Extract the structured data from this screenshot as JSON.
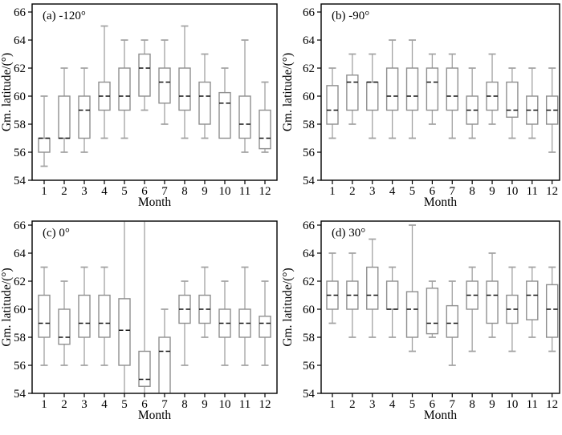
{
  "figure": {
    "background": "#ffffff",
    "xlabel": "Month",
    "ylabel": "Gm. latitude/(°)"
  },
  "colors": {
    "box_stroke": "#8f8f8f",
    "whisker_stroke": "#a2a2a2",
    "median": "#141414",
    "axis": "#000000",
    "box_fill": "#ffffff"
  },
  "chart_data": [
    {
      "type": "boxplot",
      "panel_label": "(a) -120°",
      "xlabel": "Month",
      "ylabel": "Gm. latitude/(°)",
      "ylim": [
        54,
        66.6
      ],
      "yticks": [
        54,
        56,
        58,
        60,
        62,
        64,
        66
      ],
      "categories": [
        "1",
        "2",
        "3",
        "4",
        "5",
        "6",
        "7",
        "8",
        "9",
        "10",
        "11",
        "12"
      ],
      "boxes": [
        {
          "lo": 55,
          "q1": 56,
          "med": 57,
          "q3": 57,
          "hi": 60
        },
        {
          "lo": 56,
          "q1": 57,
          "med": 57,
          "q3": 60,
          "hi": 62
        },
        {
          "lo": 56,
          "q1": 57,
          "med": 59,
          "q3": 60,
          "hi": 62
        },
        {
          "lo": 57,
          "q1": 59,
          "med": 60,
          "q3": 61,
          "hi": 65
        },
        {
          "lo": 57,
          "q1": 59,
          "med": 60,
          "q3": 62,
          "hi": 64
        },
        {
          "lo": 59,
          "q1": 60,
          "med": 62,
          "q3": 63,
          "hi": 64
        },
        {
          "lo": 58,
          "q1": 59.5,
          "med": 61,
          "q3": 62,
          "hi": 64
        },
        {
          "lo": 57,
          "q1": 59,
          "med": 60,
          "q3": 62,
          "hi": 65
        },
        {
          "lo": 57,
          "q1": 58,
          "med": 60,
          "q3": 61,
          "hi": 63
        },
        {
          "lo": 57,
          "q1": 57,
          "med": 59.5,
          "q3": 60.25,
          "hi": 62
        },
        {
          "lo": 56,
          "q1": 57,
          "med": 58,
          "q3": 60,
          "hi": 64
        },
        {
          "lo": 56,
          "q1": 56.25,
          "med": 57,
          "q3": 59,
          "hi": 61
        }
      ]
    },
    {
      "type": "boxplot",
      "panel_label": "(b) -90°",
      "xlabel": "Month",
      "ylabel": "Gm. latitude/(°)",
      "ylim": [
        54,
        66.6
      ],
      "yticks": [
        54,
        56,
        58,
        60,
        62,
        64,
        66
      ],
      "categories": [
        "1",
        "2",
        "3",
        "4",
        "5",
        "6",
        "7",
        "8",
        "9",
        "10",
        "11",
        "12"
      ],
      "boxes": [
        {
          "lo": 57,
          "q1": 58,
          "med": 59,
          "q3": 60.75,
          "hi": 62
        },
        {
          "lo": 58,
          "q1": 59,
          "med": 61,
          "q3": 61.5,
          "hi": 63
        },
        {
          "lo": 57,
          "q1": 59,
          "med": 61,
          "q3": 61,
          "hi": 63
        },
        {
          "lo": 57,
          "q1": 59,
          "med": 60,
          "q3": 62,
          "hi": 64
        },
        {
          "lo": 57,
          "q1": 59,
          "med": 60,
          "q3": 62,
          "hi": 64
        },
        {
          "lo": 58,
          "q1": 59,
          "med": 61,
          "q3": 62,
          "hi": 63
        },
        {
          "lo": 57,
          "q1": 59,
          "med": 60,
          "q3": 62,
          "hi": 63
        },
        {
          "lo": 57,
          "q1": 58,
          "med": 59,
          "q3": 60,
          "hi": 62
        },
        {
          "lo": 58,
          "q1": 59,
          "med": 60,
          "q3": 61,
          "hi": 63
        },
        {
          "lo": 57,
          "q1": 58.5,
          "med": 59,
          "q3": 61,
          "hi": 62
        },
        {
          "lo": 57,
          "q1": 58,
          "med": 59,
          "q3": 60,
          "hi": 62
        },
        {
          "lo": 56,
          "q1": 58,
          "med": 59,
          "q3": 60,
          "hi": 62
        }
      ]
    },
    {
      "type": "boxplot",
      "panel_label": "(c) 0°",
      "xlabel": "Month",
      "ylabel": "Gm. latitude/(°)",
      "ylim": [
        54,
        66.6
      ],
      "yticks": [
        54,
        56,
        58,
        60,
        62,
        64,
        66
      ],
      "categories": [
        "1",
        "2",
        "3",
        "4",
        "5",
        "6",
        "7",
        "8",
        "9",
        "10",
        "11",
        "12"
      ],
      "note": "months 5 and 6 have whiskers clipped at both frame edges; month 7 box bottom is clipped below the frame",
      "boxes": [
        {
          "lo": 56,
          "q1": 58,
          "med": 59,
          "q3": 61,
          "hi": 63
        },
        {
          "lo": 56,
          "q1": 57.5,
          "med": 58,
          "q3": 60,
          "hi": 62
        },
        {
          "lo": 56,
          "q1": 58,
          "med": 59,
          "q3": 61,
          "hi": 63
        },
        {
          "lo": 56,
          "q1": 58,
          "med": 59,
          "q3": 61,
          "hi": 63
        },
        {
          "lo": 53,
          "q1": 56,
          "med": 58.5,
          "q3": 60.75,
          "hi": 67.5
        },
        {
          "lo": 53,
          "q1": 54.5,
          "med": 55,
          "q3": 57,
          "hi": 67.5
        },
        {
          "lo": 53.5,
          "q1": 53.5,
          "med": 57,
          "q3": 58,
          "hi": 60
        },
        {
          "lo": 56,
          "q1": 59,
          "med": 60,
          "q3": 61,
          "hi": 62
        },
        {
          "lo": 58,
          "q1": 59,
          "med": 60,
          "q3": 61,
          "hi": 63
        },
        {
          "lo": 56,
          "q1": 58,
          "med": 59,
          "q3": 60,
          "hi": 62
        },
        {
          "lo": 56,
          "q1": 58,
          "med": 59,
          "q3": 60,
          "hi": 63
        },
        {
          "lo": 56,
          "q1": 58,
          "med": 59,
          "q3": 59.5,
          "hi": 62
        }
      ]
    },
    {
      "type": "boxplot",
      "panel_label": "(d) 30°",
      "xlabel": "Month",
      "ylabel": "Gm. latitude/(°)",
      "ylim": [
        54,
        66.6
      ],
      "yticks": [
        54,
        56,
        58,
        60,
        62,
        64,
        66
      ],
      "categories": [
        "1",
        "2",
        "3",
        "4",
        "5",
        "6",
        "7",
        "8",
        "9",
        "10",
        "11",
        "12"
      ],
      "boxes": [
        {
          "lo": 59,
          "q1": 60,
          "med": 61,
          "q3": 62,
          "hi": 64
        },
        {
          "lo": 58,
          "q1": 60,
          "med": 61,
          "q3": 62,
          "hi": 64
        },
        {
          "lo": 58,
          "q1": 60,
          "med": 61,
          "q3": 63,
          "hi": 65
        },
        {
          "lo": 58,
          "q1": 60,
          "med": 60,
          "q3": 62,
          "hi": 63
        },
        {
          "lo": 57,
          "q1": 58,
          "med": 60,
          "q3": 61.25,
          "hi": 66
        },
        {
          "lo": 58,
          "q1": 58.25,
          "med": 59,
          "q3": 61.5,
          "hi": 62
        },
        {
          "lo": 56,
          "q1": 58,
          "med": 59,
          "q3": 60.25,
          "hi": 62
        },
        {
          "lo": 57,
          "q1": 60,
          "med": 61,
          "q3": 62,
          "hi": 63
        },
        {
          "lo": 58,
          "q1": 59,
          "med": 61,
          "q3": 62,
          "hi": 64
        },
        {
          "lo": 57,
          "q1": 59,
          "med": 60,
          "q3": 61,
          "hi": 63
        },
        {
          "lo": 58,
          "q1": 59.25,
          "med": 61,
          "q3": 62,
          "hi": 63
        },
        {
          "lo": 57,
          "q1": 58,
          "med": 60,
          "q3": 61.75,
          "hi": 63
        }
      ]
    }
  ]
}
